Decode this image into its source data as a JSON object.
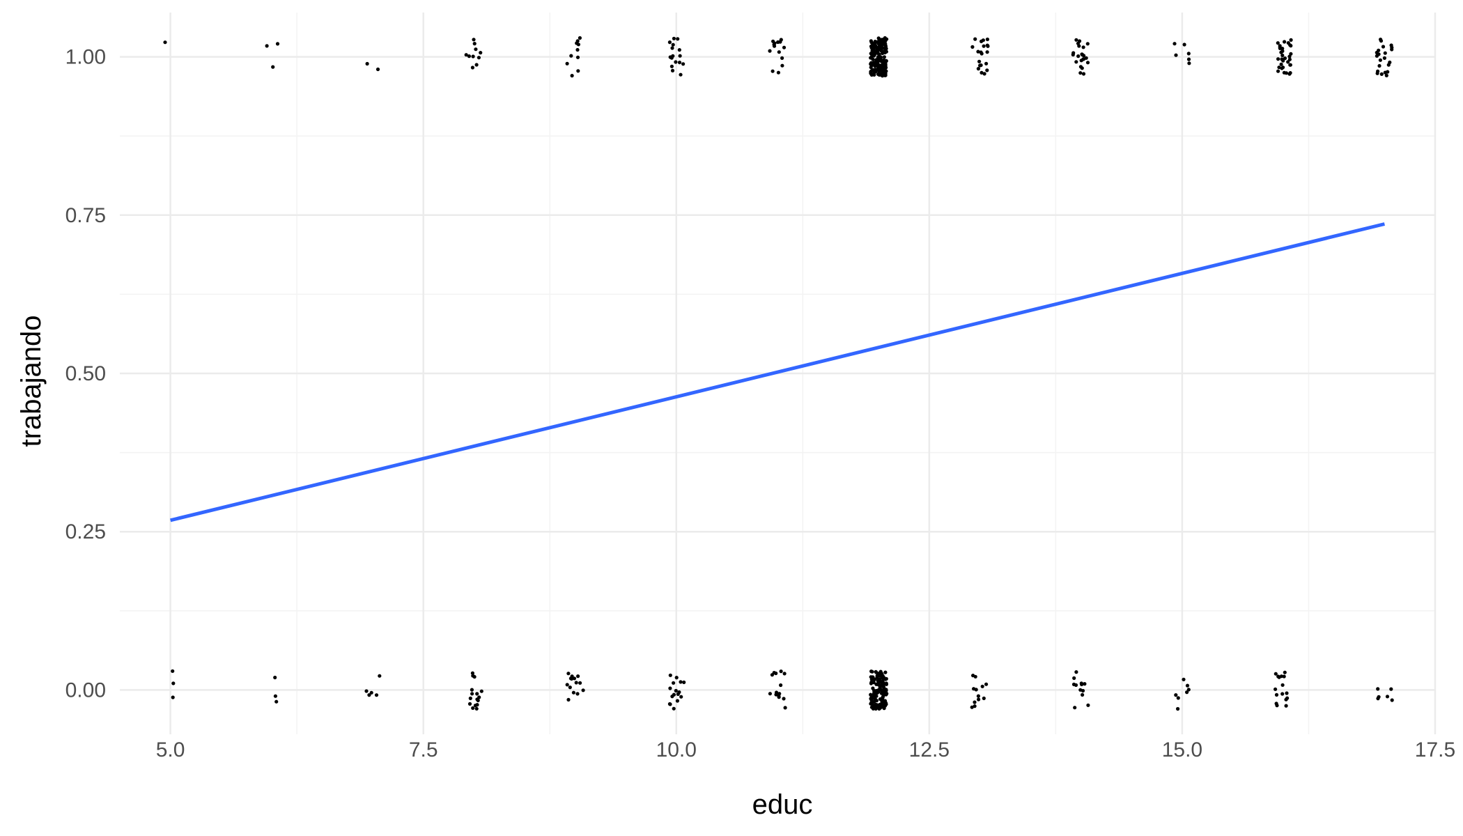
{
  "chart_data": {
    "type": "scatter",
    "xlabel": "educ",
    "ylabel": "trabajando",
    "xlim": [
      4.5,
      17.5
    ],
    "ylim": [
      -0.07,
      1.07
    ],
    "x_ticks": [
      5.0,
      7.5,
      10.0,
      12.5,
      15.0,
      17.5
    ],
    "x_tick_labels": [
      "5.0",
      "7.5",
      "10.0",
      "12.5",
      "15.0",
      "17.5"
    ],
    "y_ticks": [
      0.0,
      0.25,
      0.5,
      0.75,
      1.0
    ],
    "y_tick_labels": [
      "0.00",
      "0.25",
      "0.50",
      "0.75",
      "1.00"
    ],
    "grid": true,
    "legend": "none",
    "jitter": {
      "x": 0.08,
      "y": 0.03
    },
    "point_counts": [
      {
        "educ": 5,
        "zeros": 3,
        "ones": 1
      },
      {
        "educ": 6,
        "zeros": 3,
        "ones": 3
      },
      {
        "educ": 7,
        "zeros": 5,
        "ones": 2
      },
      {
        "educ": 8,
        "zeros": 16,
        "ones": 10
      },
      {
        "educ": 9,
        "zeros": 14,
        "ones": 10
      },
      {
        "educ": 10,
        "zeros": 16,
        "ones": 16
      },
      {
        "educ": 11,
        "zeros": 14,
        "ones": 14
      },
      {
        "educ": 12,
        "zeros": 130,
        "ones": 180
      },
      {
        "educ": 13,
        "zeros": 12,
        "ones": 20
      },
      {
        "educ": 14,
        "zeros": 12,
        "ones": 22
      },
      {
        "educ": 15,
        "zeros": 7,
        "ones": 6
      },
      {
        "educ": 16,
        "zeros": 16,
        "ones": 32
      },
      {
        "educ": 17,
        "zeros": 6,
        "ones": 22
      }
    ],
    "series": [
      {
        "type": "line",
        "x": [
          5,
          17
        ],
        "y": [
          0.268,
          0.736
        ]
      }
    ],
    "colors": {
      "points": "#000000",
      "fit_line": "#3366ff",
      "grid_major": "#ebebeb",
      "grid_minor": "#f3f3f3",
      "tick_text": "#4d4d4d",
      "title_text": "#000000"
    }
  }
}
